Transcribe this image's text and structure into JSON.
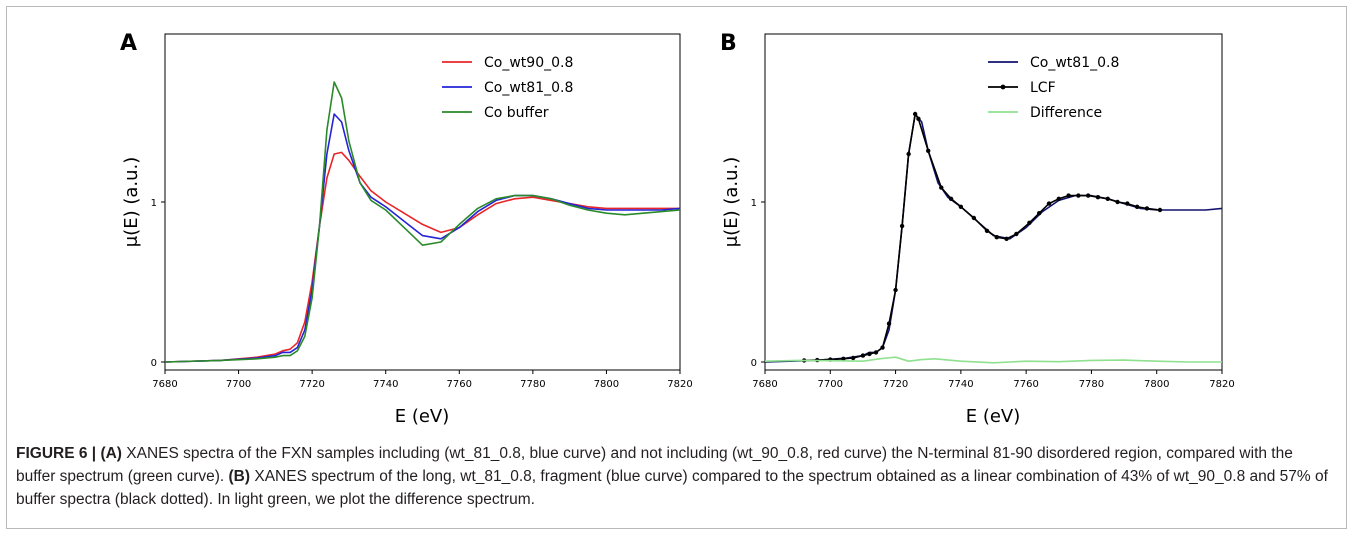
{
  "chart_data": [
    {
      "panel": "A",
      "type": "line",
      "xlabel": "E (eV)",
      "ylabel": "μ(E) (a.u.)",
      "xlim": [
        7680,
        7820
      ],
      "ylim": [
        -0.05,
        2.05
      ],
      "xticks": [
        7680,
        7700,
        7720,
        7740,
        7760,
        7780,
        7800,
        7820
      ],
      "yticks": [
        0,
        1
      ],
      "legend_position": "top-right",
      "series": [
        {
          "name": "Co_wt90_0.8",
          "color": "#e8262a",
          "x": [
            7680,
            7695,
            7705,
            7710,
            7712,
            7714,
            7716,
            7718,
            7720,
            7722,
            7724,
            7726,
            7728,
            7730,
            7733,
            7736,
            7740,
            7745,
            7750,
            7755,
            7760,
            7765,
            7770,
            7775,
            7780,
            7785,
            7790,
            7795,
            7800,
            7805,
            7810,
            7815,
            7820
          ],
          "y": [
            0,
            0.01,
            0.03,
            0.05,
            0.07,
            0.08,
            0.12,
            0.25,
            0.5,
            0.85,
            1.15,
            1.3,
            1.31,
            1.26,
            1.16,
            1.07,
            1.0,
            0.93,
            0.86,
            0.81,
            0.84,
            0.92,
            0.99,
            1.02,
            1.03,
            1.01,
            0.99,
            0.97,
            0.96,
            0.96,
            0.96,
            0.96,
            0.96
          ]
        },
        {
          "name": "Co_wt81_0.8",
          "color": "#2424d8",
          "x": [
            7680,
            7695,
            7705,
            7710,
            7712,
            7714,
            7716,
            7718,
            7720,
            7722,
            7724,
            7726,
            7728,
            7730,
            7733,
            7736,
            7740,
            7745,
            7750,
            7755,
            7760,
            7765,
            7770,
            7775,
            7780,
            7785,
            7790,
            7795,
            7800,
            7805,
            7810,
            7815,
            7820
          ],
          "y": [
            0,
            0.01,
            0.025,
            0.04,
            0.06,
            0.06,
            0.09,
            0.2,
            0.45,
            0.85,
            1.3,
            1.55,
            1.5,
            1.32,
            1.12,
            1.03,
            0.97,
            0.88,
            0.79,
            0.77,
            0.84,
            0.94,
            1.01,
            1.04,
            1.04,
            1.02,
            0.99,
            0.96,
            0.95,
            0.95,
            0.95,
            0.95,
            0.96
          ]
        },
        {
          "name": "Co buffer",
          "color": "#2a8a2a",
          "x": [
            7680,
            7695,
            7705,
            7710,
            7712,
            7714,
            7716,
            7718,
            7720,
            7722,
            7724,
            7726,
            7728,
            7730,
            7733,
            7736,
            7740,
            7745,
            7750,
            7755,
            7760,
            7765,
            7770,
            7775,
            7780,
            7785,
            7790,
            7795,
            7800,
            7805,
            7810,
            7815,
            7820
          ],
          "y": [
            0,
            0.01,
            0.02,
            0.03,
            0.04,
            0.04,
            0.07,
            0.16,
            0.4,
            0.85,
            1.45,
            1.75,
            1.65,
            1.38,
            1.12,
            1.01,
            0.95,
            0.84,
            0.73,
            0.75,
            0.86,
            0.96,
            1.02,
            1.04,
            1.04,
            1.02,
            0.98,
            0.95,
            0.93,
            0.92,
            0.93,
            0.94,
            0.95
          ]
        }
      ]
    },
    {
      "panel": "B",
      "type": "line",
      "xlabel": "E (eV)",
      "ylabel": "μ(E) (a.u.)",
      "xlim": [
        7680,
        7820
      ],
      "ylim": [
        -0.05,
        2.05
      ],
      "xticks": [
        7680,
        7700,
        7720,
        7740,
        7760,
        7780,
        7800,
        7820
      ],
      "yticks": [
        0,
        1
      ],
      "legend_position": "top-right",
      "series": [
        {
          "name": "Co_wt81_0.8",
          "color": "#12126e",
          "x": [
            7680,
            7695,
            7705,
            7710,
            7712,
            7714,
            7716,
            7718,
            7720,
            7722,
            7724,
            7726,
            7728,
            7730,
            7733,
            7736,
            7740,
            7745,
            7750,
            7755,
            7760,
            7765,
            7770,
            7775,
            7780,
            7785,
            7790,
            7795,
            7800,
            7805,
            7810,
            7815,
            7820
          ],
          "y": [
            0,
            0.01,
            0.025,
            0.04,
            0.06,
            0.06,
            0.09,
            0.2,
            0.45,
            0.85,
            1.3,
            1.55,
            1.5,
            1.32,
            1.12,
            1.03,
            0.97,
            0.88,
            0.79,
            0.77,
            0.84,
            0.94,
            1.01,
            1.04,
            1.04,
            1.02,
            0.99,
            0.96,
            0.95,
            0.95,
            0.95,
            0.95,
            0.96
          ]
        },
        {
          "name": "LCF",
          "color": "#000000",
          "marker": "dot",
          "x": [
            7692,
            7696,
            7700,
            7704,
            7707,
            7710,
            7712,
            7714,
            7716,
            7718,
            7720,
            7722,
            7724,
            7726,
            7727,
            7730,
            7734,
            7737,
            7740,
            7744,
            7748,
            7751,
            7754,
            7757,
            7761,
            7764,
            7767,
            7770,
            7773,
            7776,
            7779,
            7782,
            7785,
            7788,
            7791,
            7794,
            7797,
            7801
          ],
          "y": [
            0.01,
            0.012,
            0.015,
            0.02,
            0.025,
            0.04,
            0.05,
            0.06,
            0.09,
            0.24,
            0.45,
            0.85,
            1.3,
            1.55,
            1.52,
            1.32,
            1.09,
            1.02,
            0.97,
            0.9,
            0.82,
            0.78,
            0.77,
            0.8,
            0.87,
            0.93,
            0.99,
            1.02,
            1.04,
            1.04,
            1.04,
            1.03,
            1.02,
            1.0,
            0.99,
            0.97,
            0.96,
            0.95
          ]
        },
        {
          "name": "Difference",
          "color": "#8fe08f",
          "x": [
            7680,
            7690,
            7700,
            7710,
            7715,
            7720,
            7724,
            7728,
            7732,
            7740,
            7750,
            7755,
            7760,
            7770,
            7780,
            7790,
            7800,
            7810,
            7820
          ],
          "y": [
            0.005,
            0.01,
            0.008,
            0.005,
            0.02,
            0.03,
            0.005,
            0.015,
            0.02,
            0.005,
            -0.005,
            0.0,
            0.005,
            0.002,
            0.01,
            0.012,
            0.005,
            0.0,
            0.0
          ]
        }
      ]
    }
  ],
  "caption": {
    "label": "FIGURE 6 |",
    "a_label": "(A)",
    "a_text": "XANES spectra of the FXN samples including (wt_81_0.8, blue curve) and not including (wt_90_0.8, red curve) the N-terminal 81-90 disordered region, compared with the buffer spectrum (green curve).",
    "b_label": "(B)",
    "b_text": "XANES spectrum of the long, wt_81_0.8, fragment (blue curve) compared to the spectrum obtained as a linear combination of 43% of wt_90_0.8 and 57% of buffer spectra (black dotted). In light green, we plot the difference spectrum."
  }
}
